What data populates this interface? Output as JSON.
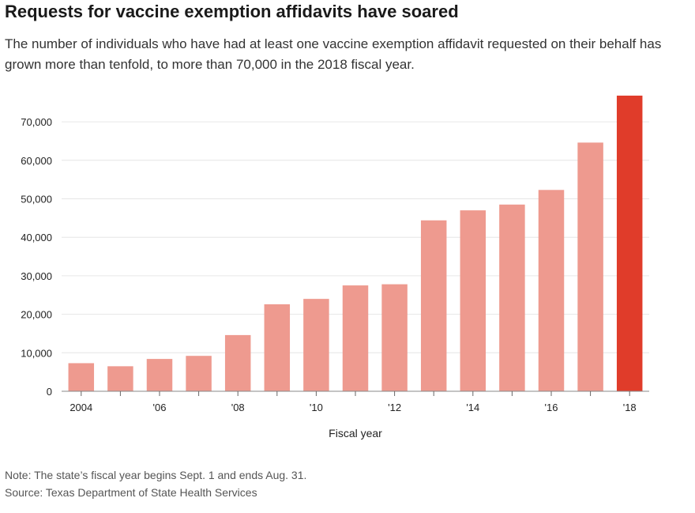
{
  "header": {
    "title": "Requests for vaccine exemption affidavits have soared",
    "subtitle": "The number of individuals who have had at least one vaccine exemption affidavit requested on their behalf has grown more than tenfold, to more than 70,000 in the 2018 fiscal year."
  },
  "notes": {
    "note": "Note: The state’s fiscal year begins Sept. 1 and ends Aug. 31.",
    "source": "Source: Texas Department of State Health Services"
  },
  "colors": {
    "bar": "#ee9a8f",
    "highlight": "#e03c2a",
    "grid": "#e6e6e6"
  },
  "chart_data": {
    "type": "bar",
    "title": "Requests for vaccine exemption affidavits have soared",
    "xlabel": "Fiscal year",
    "ylabel": "",
    "categories": [
      "2004",
      "2005",
      "2006",
      "2007",
      "2008",
      "2009",
      "2010",
      "2011",
      "2012",
      "2013",
      "2014",
      "2015",
      "2016",
      "2017",
      "2018"
    ],
    "x_tick_labels": [
      "2004",
      "",
      "'06",
      "",
      "'08",
      "",
      "'10",
      "",
      "'12",
      "",
      "'14",
      "",
      "'16",
      "",
      "'18"
    ],
    "values": [
      7300,
      6500,
      8400,
      9200,
      14600,
      22600,
      24000,
      27500,
      27800,
      44400,
      47000,
      48500,
      52300,
      64600,
      76800
    ],
    "highlight_index": 14,
    "ylim": [
      0,
      77000
    ],
    "y_ticks": [
      0,
      10000,
      20000,
      30000,
      40000,
      50000,
      60000,
      70000
    ],
    "y_tick_labels": [
      "0",
      "10,000",
      "20,000",
      "30,000",
      "40,000",
      "50,000",
      "60,000",
      "70,000"
    ],
    "grid": true,
    "legend": "none"
  }
}
